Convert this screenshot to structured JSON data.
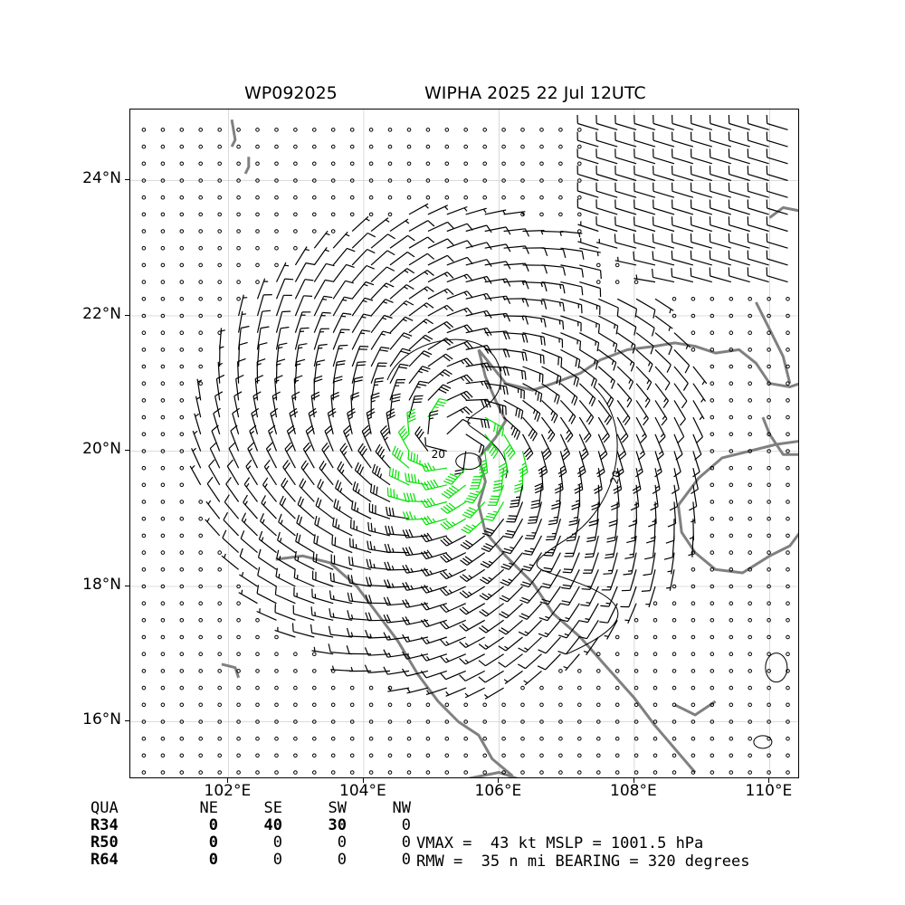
{
  "header": {
    "storm_id": "WP092025",
    "storm_title": "WIPHA 2025 22 Jul 12UTC"
  },
  "map": {
    "extent": {
      "lon_min": 100.55,
      "lon_max": 110.45,
      "lat_min": 15.15,
      "lat_max": 25.05
    },
    "lat_ticks": [
      {
        "value": 24,
        "label": "24°N"
      },
      {
        "value": 22,
        "label": "22°N"
      },
      {
        "value": 20,
        "label": "20°N"
      },
      {
        "value": 18,
        "label": "18°N"
      },
      {
        "value": 16,
        "label": "16°N"
      }
    ],
    "lon_ticks": [
      {
        "value": 102,
        "label": "102°E"
      },
      {
        "value": 104,
        "label": "104°E"
      },
      {
        "value": 106,
        "label": "106°E"
      },
      {
        "value": 108,
        "label": "108°E"
      },
      {
        "value": 110,
        "label": "110°E"
      }
    ],
    "storm_center": {
      "lon": 105.3,
      "lat": 20.1
    },
    "rmw_nmi": 35,
    "contour_label": "20",
    "colors": {
      "barb": "#000000",
      "barb_strong": "#00e000",
      "barb_hurricane": "#ffb000",
      "coast": "#808080",
      "grid": "#d0d0d0",
      "contour": "#000000"
    },
    "grid_lines": true
  },
  "radii": {
    "header": [
      "QUA",
      "NE",
      "SE",
      "SW",
      "NW"
    ],
    "rows": [
      {
        "label": "R34",
        "values": [
          "0",
          "40",
          "30",
          "0"
        ]
      },
      {
        "label": "R50",
        "values": [
          "0",
          "0",
          "0",
          "0"
        ]
      },
      {
        "label": "R64",
        "values": [
          "0",
          "0",
          "0",
          "0"
        ]
      }
    ]
  },
  "stats": {
    "line1": "VMAX =  43 kt MSLP = 1001.5 hPa",
    "line2": "RMW =  35 n mi BEARING = 320 degrees"
  }
}
